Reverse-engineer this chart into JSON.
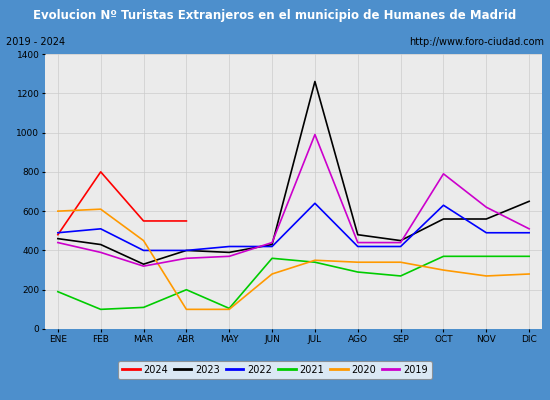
{
  "title": "Evolucion Nº Turistas Extranjeros en el municipio de Humanes de Madrid",
  "subtitle_left": "2019 - 2024",
  "subtitle_right": "http://www.foro-ciudad.com",
  "months": [
    "ENE",
    "FEB",
    "MAR",
    "ABR",
    "MAY",
    "JUN",
    "JUL",
    "AGO",
    "SEP",
    "OCT",
    "NOV",
    "DIC"
  ],
  "series": {
    "2024": [
      480,
      800,
      550,
      550,
      null,
      null,
      null,
      null,
      null,
      null,
      null,
      null
    ],
    "2023": [
      460,
      430,
      330,
      400,
      390,
      430,
      1260,
      480,
      450,
      560,
      560,
      650
    ],
    "2022": [
      490,
      510,
      400,
      400,
      420,
      420,
      640,
      420,
      420,
      630,
      490,
      490
    ],
    "2021": [
      190,
      100,
      110,
      200,
      105,
      360,
      340,
      290,
      270,
      370,
      370,
      370
    ],
    "2020": [
      600,
      610,
      450,
      100,
      100,
      280,
      350,
      340,
      340,
      300,
      270,
      280
    ],
    "2019": [
      440,
      390,
      320,
      360,
      370,
      440,
      990,
      440,
      440,
      790,
      620,
      510
    ]
  },
  "colors": {
    "2024": "#ff0000",
    "2023": "#000000",
    "2022": "#0000ff",
    "2021": "#00cc00",
    "2020": "#ff9900",
    "2019": "#cc00cc"
  },
  "ylim": [
    0,
    1400
  ],
  "yticks": [
    0,
    200,
    400,
    600,
    800,
    1000,
    1200,
    1400
  ],
  "title_bg_color": "#4d8fcc",
  "title_text_color": "#ffffff",
  "plot_bg_color": "#ebebeb",
  "outer_bg_color": "#ffffff",
  "grid_color": "#cccccc",
  "border_color": "#4d8fcc"
}
